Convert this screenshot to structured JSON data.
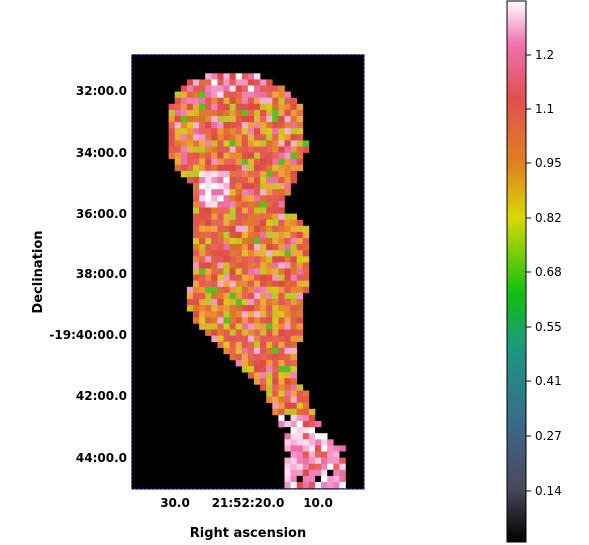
{
  "chart_data": {
    "type": "heatmap",
    "title": "",
    "xlabel": "Right ascension",
    "ylabel": "Declination",
    "x_ticks": [
      "30.0",
      "21:52:20.0",
      "10.0"
    ],
    "y_ticks": [
      "32:00.0",
      "34:00.0",
      "36:00.0",
      "38:00.0",
      "-19:40:00.0",
      "42:00.0",
      "44:00.0"
    ],
    "colorbar": {
      "ticks": [
        "0.14",
        "0.27",
        "0.41",
        "0.55",
        "0.68",
        "0.82",
        "0.95",
        "1.1",
        "1.2"
      ],
      "colors": [
        "#000000",
        "#4a4a5c",
        "#3a6a8a",
        "#1a9a80",
        "#10c010",
        "#d8d800",
        "#e08020",
        "#e05050",
        "#f070b0",
        "#ffffff"
      ],
      "range": [
        0.0,
        1.3
      ]
    },
    "background_color": "#000000",
    "grid": false,
    "typical_value": 0.95,
    "high_value_regions": [
      "top cap",
      "left-middle knot",
      "bottom-right clump"
    ]
  }
}
